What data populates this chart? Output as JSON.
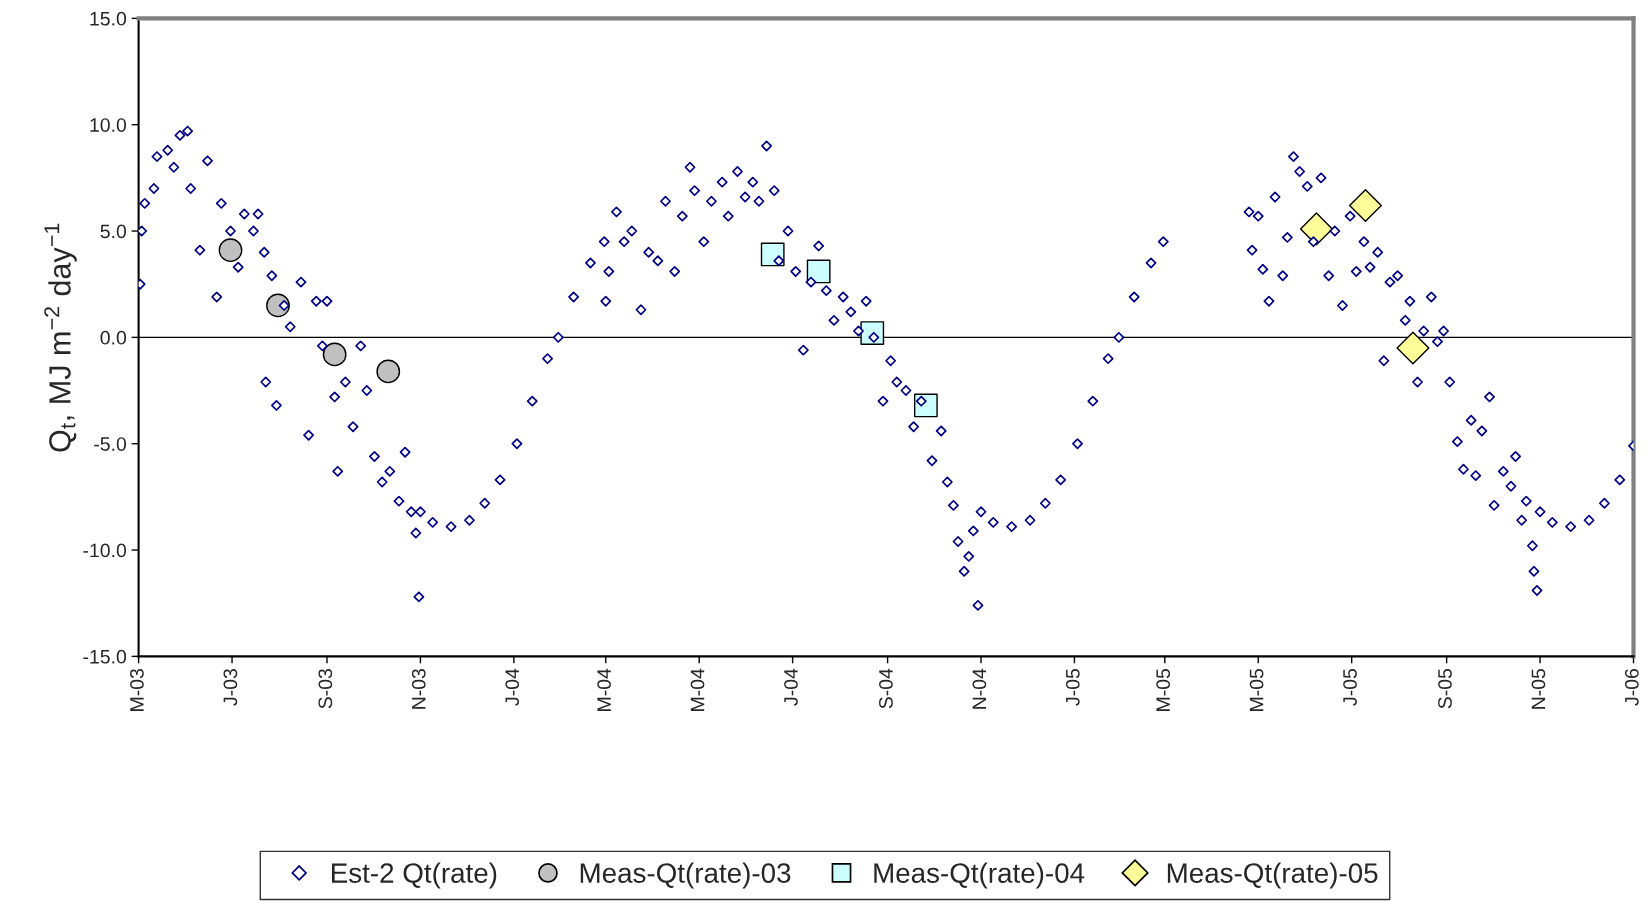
{
  "chart_data": {
    "type": "scatter",
    "ylabel": "Q$_{t}$, MJ m$^{−2}$ day$^{−1}$",
    "xlim": [
      "2003-05-01",
      "2006-01-01"
    ],
    "xticks": [
      {
        "value": "2003-05-01",
        "label": "M-03"
      },
      {
        "value": "2003-07-01",
        "label": "J-03"
      },
      {
        "value": "2003-09-01",
        "label": "S-03"
      },
      {
        "value": "2003-11-01",
        "label": "N-03"
      },
      {
        "value": "2004-01-01",
        "label": "J-04"
      },
      {
        "value": "2004-03-01",
        "label": "M-04"
      },
      {
        "value": "2004-05-01",
        "label": "M-04"
      },
      {
        "value": "2004-07-01",
        "label": "J-04"
      },
      {
        "value": "2004-09-01",
        "label": "S-04"
      },
      {
        "value": "2004-11-01",
        "label": "N-04"
      },
      {
        "value": "2005-01-01",
        "label": "J-05"
      },
      {
        "value": "2005-03-01",
        "label": "M-05"
      },
      {
        "value": "2005-05-01",
        "label": "M-05"
      },
      {
        "value": "2005-07-01",
        "label": "J-05"
      },
      {
        "value": "2005-09-01",
        "label": "S-05"
      },
      {
        "value": "2005-11-01",
        "label": "N-05"
      },
      {
        "value": "2006-01-01",
        "label": "J-06"
      }
    ],
    "ylim": [
      -15,
      15
    ],
    "yticks": [
      {
        "value": -15,
        "label": "-15.0"
      },
      {
        "value": -10,
        "label": "-10.0"
      },
      {
        "value": -5,
        "label": "-5.0"
      },
      {
        "value": 0,
        "label": "0.0"
      },
      {
        "value": 5,
        "label": "5.0"
      },
      {
        "value": 10,
        "label": "10.0"
      },
      {
        "value": 15,
        "label": "15.0"
      }
    ],
    "grid": false,
    "legend": "bottom",
    "ref_lines": [
      {
        "axis": "y",
        "value": 0,
        "color": "#000000",
        "line_style": "solid"
      }
    ],
    "series": [
      {
        "name": "Est-2 Qt(rate)",
        "color": "#000080",
        "marker": "diamond",
        "x": [
          "2003-05-02",
          "2003-05-03",
          "2003-05-05",
          "2003-05-11",
          "2003-05-13",
          "2003-05-20",
          "2003-05-24",
          "2003-05-28",
          "2003-06-02",
          "2003-06-04",
          "2003-06-10",
          "2003-06-15",
          "2003-06-21",
          "2003-06-24",
          "2003-06-30",
          "2003-07-05",
          "2003-07-09",
          "2003-07-15",
          "2003-07-18",
          "2003-07-22",
          "2003-07-23",
          "2003-07-27",
          "2003-07-30",
          "2003-08-04",
          "2003-08-08",
          "2003-08-15",
          "2003-08-20",
          "2003-08-25",
          "2003-08-29",
          "2003-09-01",
          "2003-09-06",
          "2003-09-08",
          "2003-09-13",
          "2003-09-18",
          "2003-09-23",
          "2003-09-27",
          "2003-10-02",
          "2003-10-07",
          "2003-10-12",
          "2003-10-18",
          "2003-10-22",
          "2003-10-26",
          "2003-10-29",
          "2003-10-31",
          "2003-11-01",
          "2003-11-09",
          "2003-11-21",
          "2003-12-03",
          "2003-12-13",
          "2003-12-23",
          "2004-01-03",
          "2004-01-13",
          "2004-01-23",
          "2004-01-30",
          "2004-02-09",
          "2004-02-20",
          "2004-02-29",
          "2004-03-01",
          "2004-03-03",
          "2004-03-08",
          "2004-03-13",
          "2004-03-18",
          "2004-03-24",
          "2004-03-29",
          "2004-04-04",
          "2004-04-09",
          "2004-04-15",
          "2004-04-20",
          "2004-04-25",
          "2004-04-28",
          "2004-05-04",
          "2004-05-09",
          "2004-05-16",
          "2004-05-20",
          "2004-05-26",
          "2004-05-31",
          "2004-06-05",
          "2004-06-09",
          "2004-06-14",
          "2004-06-19",
          "2004-06-22",
          "2004-06-28",
          "2004-07-03",
          "2004-07-08",
          "2004-07-13",
          "2004-07-18",
          "2004-07-23",
          "2004-07-28",
          "2004-08-03",
          "2004-08-08",
          "2004-08-13",
          "2004-08-18",
          "2004-08-23",
          "2004-08-29",
          "2004-09-03",
          "2004-09-07",
          "2004-09-13",
          "2004-09-18",
          "2004-09-23",
          "2004-09-30",
          "2004-10-06",
          "2004-10-10",
          "2004-10-14",
          "2004-10-17",
          "2004-10-21",
          "2004-10-24",
          "2004-10-27",
          "2004-10-30",
          "2004-11-01",
          "2004-11-09",
          "2004-11-21",
          "2004-12-03",
          "2004-12-13",
          "2004-12-23",
          "2005-01-03",
          "2005-01-13",
          "2005-01-23",
          "2005-01-30",
          "2005-02-09",
          "2005-02-20",
          "2005-02-28",
          "2005-04-25",
          "2005-04-27",
          "2005-05-01",
          "2005-05-04",
          "2005-05-08",
          "2005-05-12",
          "2005-05-17",
          "2005-05-20",
          "2005-05-24",
          "2005-05-28",
          "2005-06-02",
          "2005-06-06",
          "2005-06-11",
          "2005-06-16",
          "2005-06-20",
          "2005-06-25",
          "2005-06-30",
          "2005-07-04",
          "2005-07-09",
          "2005-07-13",
          "2005-07-18",
          "2005-07-22",
          "2005-07-26",
          "2005-07-31",
          "2005-08-05",
          "2005-08-08",
          "2005-08-13",
          "2005-08-17",
          "2005-08-22",
          "2005-08-26",
          "2005-08-30",
          "2005-09-03",
          "2005-09-08",
          "2005-09-12",
          "2005-09-17",
          "2005-09-20",
          "2005-09-24",
          "2005-09-29",
          "2005-10-02",
          "2005-10-08",
          "2005-10-13",
          "2005-10-16",
          "2005-10-20",
          "2005-10-23",
          "2005-10-27",
          "2005-10-28",
          "2005-10-30",
          "2005-11-01",
          "2005-11-09",
          "2005-11-21",
          "2005-12-03",
          "2005-12-13",
          "2005-12-23",
          "2006-01-01"
        ],
        "values": [
          2.5,
          5.0,
          6.3,
          7.0,
          8.5,
          8.8,
          8.0,
          9.5,
          9.7,
          7.0,
          4.1,
          8.3,
          1.9,
          6.3,
          5.0,
          3.3,
          5.8,
          5.0,
          5.8,
          4.0,
          -2.1,
          2.9,
          -3.2,
          1.5,
          0.5,
          2.6,
          -4.6,
          1.7,
          -0.4,
          1.7,
          -2.8,
          -6.3,
          -2.1,
          -4.2,
          -0.4,
          -2.5,
          -5.6,
          -6.8,
          -6.3,
          -7.7,
          -5.4,
          -8.2,
          -9.2,
          -12.2,
          -8.2,
          -8.7,
          -8.9,
          -8.6,
          -7.8,
          -6.7,
          -5.0,
          -3.0,
          -1.0,
          0.0,
          1.9,
          3.5,
          4.5,
          1.7,
          3.1,
          5.9,
          4.5,
          5.0,
          1.3,
          4.0,
          3.6,
          6.4,
          3.1,
          5.7,
          8.0,
          6.9,
          4.5,
          6.4,
          7.3,
          5.7,
          7.8,
          6.6,
          7.3,
          6.4,
          9.0,
          6.9,
          3.6,
          5.0,
          3.1,
          -0.6,
          2.6,
          4.3,
          2.2,
          0.8,
          1.9,
          1.2,
          0.3,
          1.7,
          0.0,
          -3.0,
          -1.1,
          -2.1,
          -2.5,
          -4.2,
          -3.0,
          -5.8,
          -4.4,
          -6.8,
          -7.9,
          -9.6,
          -11.0,
          -10.3,
          -9.1,
          -12.6,
          -8.2,
          -8.7,
          -8.9,
          -8.6,
          -7.8,
          -6.7,
          -5.0,
          -3.0,
          -1.0,
          0.0,
          1.9,
          3.5,
          4.5,
          5.9,
          4.1,
          5.7,
          3.2,
          1.7,
          6.6,
          2.9,
          4.7,
          8.5,
          7.8,
          7.1,
          4.5,
          7.5,
          2.9,
          5.0,
          1.5,
          5.7,
          3.1,
          4.5,
          3.3,
          4.0,
          -1.1,
          2.6,
          2.9,
          0.8,
          1.7,
          -2.1,
          0.3,
          1.9,
          -0.2,
          0.3,
          -2.1,
          -4.9,
          -6.2,
          -3.9,
          -6.5,
          -4.4,
          -2.8,
          -7.9,
          -6.3,
          -7.0,
          -5.6,
          -8.6,
          -7.7,
          -9.8,
          -11.0,
          -11.9,
          -8.2,
          -8.7,
          -8.9,
          -8.6,
          -7.8,
          -6.7,
          -5.1
        ]
      },
      {
        "name": "Meas-Qt(rate)-03",
        "color": "#c0c0c0",
        "marker": "circle",
        "x": [
          "2003-06-30",
          "2003-07-31",
          "2003-09-06",
          "2003-10-11"
        ],
        "values": [
          4.1,
          1.5,
          -0.8,
          -1.6
        ]
      },
      {
        "name": "Meas-Qt(rate)-04",
        "color": "#ccffff",
        "marker": "square",
        "x": [
          "2004-06-18",
          "2004-07-18",
          "2004-08-22",
          "2004-09-26"
        ],
        "values": [
          3.9,
          3.1,
          0.2,
          -3.2
        ]
      },
      {
        "name": "Meas-Qt(rate)-05",
        "color": "#ffff99",
        "marker": "diamond",
        "x": [
          "2005-06-08",
          "2005-07-10",
          "2005-08-10"
        ],
        "values": [
          5.1,
          6.2,
          -0.5
        ]
      }
    ]
  }
}
